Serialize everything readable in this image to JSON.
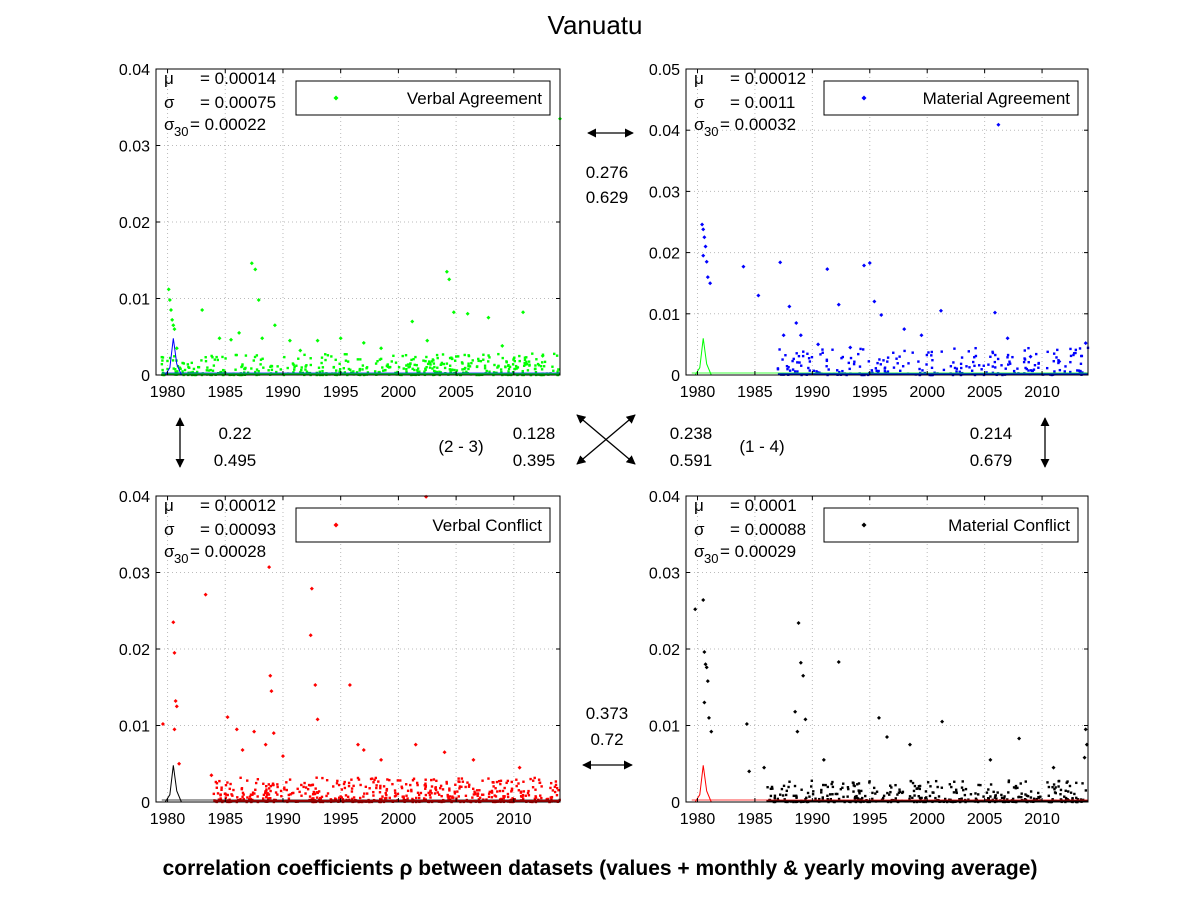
{
  "title": "Vanuatu",
  "footer": "correlation coefficients ρ between datasets (values + monthly & yearly moving average)",
  "connectors": {
    "top": {
      "v1": "0.276",
      "v2": "0.629"
    },
    "bottom": {
      "v1": "0.373",
      "v2": "0.72"
    },
    "left": {
      "v1": "0.22",
      "v2": "0.495"
    },
    "right": {
      "v1": "0.214",
      "v2": "0.679"
    },
    "cross_left": {
      "v1": "0.128",
      "v2": "0.395",
      "pair": "(2 - 3)"
    },
    "cross_right": {
      "v1": "0.238",
      "v2": "0.591",
      "pair": "(1 - 4)"
    }
  },
  "chart_data": [
    {
      "type": "scatter",
      "name": "Verbal Agreement",
      "color": "#00ff00",
      "overlay_color": "#0000ff",
      "xlim": [
        1979,
        2014
      ],
      "ylim": [
        0,
        0.04
      ],
      "xticks": [
        1980,
        1985,
        1990,
        1995,
        2000,
        2005,
        2010
      ],
      "yticks": [
        0,
        0.01,
        0.02,
        0.03,
        0.04
      ],
      "ytick_labels": [
        "0",
        "0.01",
        "0.02",
        "0.03",
        "0.04"
      ],
      "grid": true,
      "legend": "top-right",
      "stats": {
        "mu": "= 0.00014",
        "sigma": "= 0.00075",
        "sigma30": "= 0.00022"
      },
      "points": [
        [
          1980.1,
          0.0112
        ],
        [
          1980.2,
          0.0098
        ],
        [
          1980.3,
          0.0085
        ],
        [
          1980.4,
          0.0072
        ],
        [
          1980.5,
          0.0065
        ],
        [
          1980.6,
          0.006
        ],
        [
          1980.8,
          0.0035
        ],
        [
          1983,
          0.0085
        ],
        [
          1984.5,
          0.0048
        ],
        [
          1985.5,
          0.0046
        ],
        [
          1986.2,
          0.0055
        ],
        [
          1987.3,
          0.0146
        ],
        [
          1987.6,
          0.0138
        ],
        [
          1987.9,
          0.0098
        ],
        [
          1988.2,
          0.0048
        ],
        [
          1989.3,
          0.0065
        ],
        [
          1990.6,
          0.0045
        ],
        [
          1991.5,
          0.0032
        ],
        [
          1993,
          0.0045
        ],
        [
          1995,
          0.0048
        ],
        [
          1997,
          0.0042
        ],
        [
          1998.5,
          0.0035
        ],
        [
          2001.2,
          0.007
        ],
        [
          2002.5,
          0.0045
        ],
        [
          2004.2,
          0.0135
        ],
        [
          2004.4,
          0.0125
        ],
        [
          2004.8,
          0.0082
        ],
        [
          2006,
          0.008
        ],
        [
          2007.8,
          0.0075
        ],
        [
          2010.8,
          0.0082
        ],
        [
          2014,
          0.0335
        ],
        [
          2012.5,
          0.0025
        ],
        [
          2009,
          0.0038
        ]
      ],
      "band": {
        "from": 1979.5,
        "to": 2014,
        "max": 0.0028,
        "density": 520
      }
    },
    {
      "type": "scatter",
      "name": "Material Agreement",
      "color": "#0000ff",
      "overlay_color": "#00ff00",
      "xlim": [
        1979,
        2014
      ],
      "ylim": [
        0,
        0.05
      ],
      "xticks": [
        1980,
        1985,
        1990,
        1995,
        2000,
        2005,
        2010
      ],
      "yticks": [
        0,
        0.01,
        0.02,
        0.03,
        0.04,
        0.05
      ],
      "ytick_labels": [
        "0",
        "0.01",
        "0.02",
        "0.03",
        "0.04",
        "0.05"
      ],
      "grid": true,
      "legend": "top-right",
      "stats": {
        "mu": "= 0.00012",
        "sigma": "= 0.0011",
        "sigma30": "= 0.00032"
      },
      "points": [
        [
          1980.4,
          0.0246
        ],
        [
          1980.5,
          0.0238
        ],
        [
          1980.6,
          0.0225
        ],
        [
          1980.7,
          0.021
        ],
        [
          1980.5,
          0.0195
        ],
        [
          1980.8,
          0.0185
        ],
        [
          1980.9,
          0.016
        ],
        [
          1981.1,
          0.015
        ],
        [
          1984,
          0.0177
        ],
        [
          1985.3,
          0.013
        ],
        [
          1987.2,
          0.0184
        ],
        [
          1988,
          0.0112
        ],
        [
          1988.6,
          0.0085
        ],
        [
          1989,
          0.0065
        ],
        [
          1991.3,
          0.0173
        ],
        [
          1992.3,
          0.0115
        ],
        [
          1994.5,
          0.0179
        ],
        [
          1995,
          0.0183
        ],
        [
          1995.4,
          0.012
        ],
        [
          1996,
          0.0098
        ],
        [
          1998,
          0.0075
        ],
        [
          1999.5,
          0.0065
        ],
        [
          2001.2,
          0.0105
        ],
        [
          2006.2,
          0.0409
        ],
        [
          2005.9,
          0.0102
        ],
        [
          2007,
          0.006
        ],
        [
          2013.8,
          0.0052
        ],
        [
          2011.5,
          0.0022
        ],
        [
          2009,
          0.003
        ],
        [
          1987.5,
          0.0065
        ],
        [
          1990.5,
          0.005
        ],
        [
          1993.3,
          0.0045
        ]
      ],
      "band": {
        "from": 1987,
        "to": 2014,
        "max": 0.0045,
        "density": 260
      }
    },
    {
      "type": "scatter",
      "name": "Verbal Conflict",
      "color": "#ff0000",
      "overlay_color": "#000000",
      "xlim": [
        1979,
        2014
      ],
      "ylim": [
        0,
        0.04
      ],
      "xticks": [
        1980,
        1985,
        1990,
        1995,
        2000,
        2005,
        2010
      ],
      "yticks": [
        0,
        0.01,
        0.02,
        0.03,
        0.04
      ],
      "ytick_labels": [
        "0",
        "0.01",
        "0.02",
        "0.03",
        "0.04"
      ],
      "grid": true,
      "legend": "top-right",
      "stats": {
        "mu": "= 0.00012",
        "sigma": "= 0.00093",
        "sigma30": "= 0.00028"
      },
      "points": [
        [
          1979.6,
          0.0102
        ],
        [
          1980.5,
          0.0235
        ],
        [
          1980.6,
          0.0195
        ],
        [
          1980.7,
          0.0132
        ],
        [
          1980.8,
          0.0125
        ],
        [
          1980.6,
          0.0095
        ],
        [
          1981,
          0.005
        ],
        [
          1983.3,
          0.0271
        ],
        [
          1983.8,
          0.0035
        ],
        [
          1985.2,
          0.0111
        ],
        [
          1986,
          0.0095
        ],
        [
          1986.5,
          0.0068
        ],
        [
          1987.5,
          0.0092
        ],
        [
          1988.8,
          0.0307
        ],
        [
          1988.9,
          0.0165
        ],
        [
          1989,
          0.0145
        ],
        [
          1989.2,
          0.009
        ],
        [
          1988.5,
          0.0075
        ],
        [
          1992.5,
          0.0279
        ],
        [
          1992.4,
          0.0218
        ],
        [
          1992.8,
          0.0153
        ],
        [
          1993,
          0.0108
        ],
        [
          1995.8,
          0.0153
        ],
        [
          1996.5,
          0.0075
        ],
        [
          1997,
          0.0068
        ],
        [
          2002.4,
          0.0399
        ],
        [
          2001.5,
          0.0075
        ],
        [
          2004,
          0.0065
        ],
        [
          2006.5,
          0.0055
        ],
        [
          2010.5,
          0.0045
        ],
        [
          1990,
          0.006
        ],
        [
          1998.5,
          0.0055
        ]
      ],
      "band": {
        "from": 1984,
        "to": 2014,
        "max": 0.0032,
        "density": 560
      }
    },
    {
      "type": "scatter",
      "name": "Material Conflict",
      "color": "#000000",
      "overlay_color": "#ff0000",
      "xlim": [
        1979,
        2014
      ],
      "ylim": [
        0,
        0.04
      ],
      "xticks": [
        1980,
        1985,
        1990,
        1995,
        2000,
        2005,
        2010
      ],
      "yticks": [
        0,
        0.01,
        0.02,
        0.03,
        0.04
      ],
      "ytick_labels": [
        "0",
        "0.01",
        "0.02",
        "0.03",
        "0.04"
      ],
      "grid": true,
      "legend": "top-right",
      "stats": {
        "mu": "= 0.0001",
        "sigma": "= 0.00088",
        "sigma30": "= 0.00029"
      },
      "points": [
        [
          1979.8,
          0.0252
        ],
        [
          1980.5,
          0.0264
        ],
        [
          1980.6,
          0.0196
        ],
        [
          1980.7,
          0.018
        ],
        [
          1980.8,
          0.0176
        ],
        [
          1980.9,
          0.0158
        ],
        [
          1980.6,
          0.013
        ],
        [
          1981,
          0.011
        ],
        [
          1981.2,
          0.0092
        ],
        [
          1984.3,
          0.0102
        ],
        [
          1984.5,
          0.004
        ],
        [
          1985.8,
          0.0045
        ],
        [
          1988.8,
          0.0234
        ],
        [
          1989,
          0.0182
        ],
        [
          1989.2,
          0.0165
        ],
        [
          1988.5,
          0.0118
        ],
        [
          1989.4,
          0.0108
        ],
        [
          1988.7,
          0.0092
        ],
        [
          1991,
          0.0055
        ],
        [
          1992.3,
          0.0183
        ],
        [
          1995.8,
          0.011
        ],
        [
          1996.5,
          0.0085
        ],
        [
          1998.5,
          0.0075
        ],
        [
          2001.3,
          0.0105
        ],
        [
          2005.5,
          0.0055
        ],
        [
          2008,
          0.0083
        ],
        [
          2013.8,
          0.0095
        ],
        [
          2013.9,
          0.0075
        ],
        [
          2013.7,
          0.0058
        ],
        [
          2011,
          0.0045
        ]
      ],
      "band": {
        "from": 1986,
        "to": 2014,
        "max": 0.0028,
        "density": 380
      }
    }
  ]
}
